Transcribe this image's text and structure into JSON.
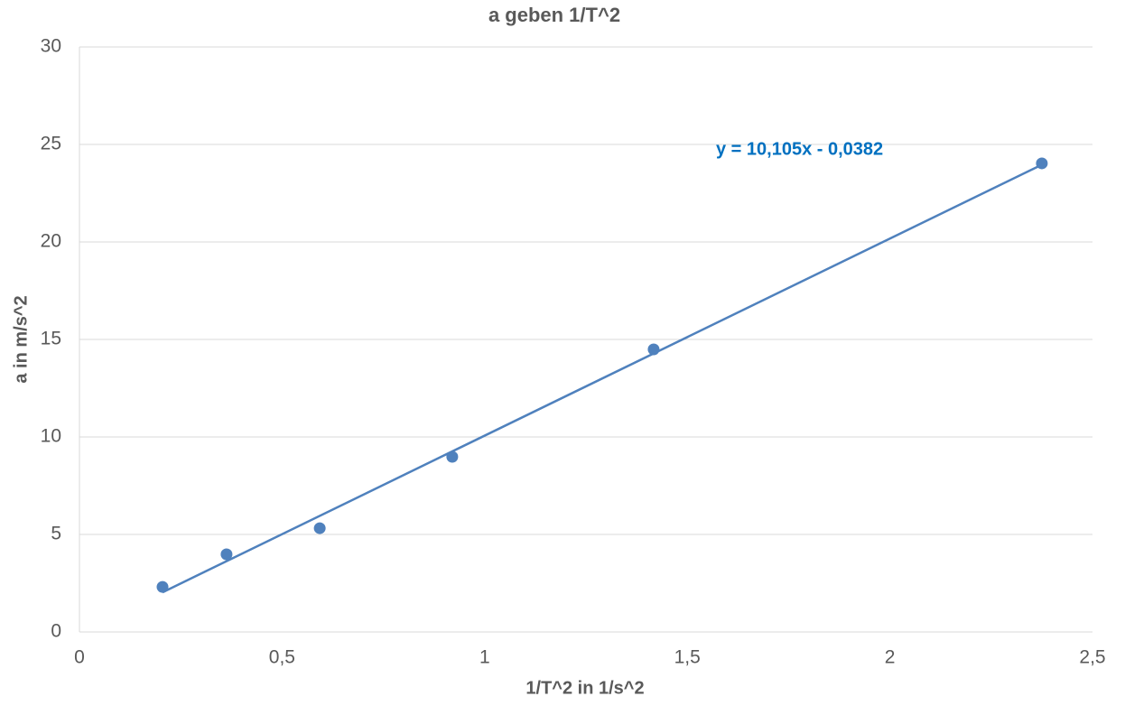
{
  "chart_data": {
    "type": "scatter",
    "title": "a geben 1/T^2",
    "x_label": "1/T^2  in 1/s^2",
    "y_label": "a in m/s^2",
    "series": [
      {
        "name": "a",
        "color": "#4f81bd",
        "x": [
          0.205,
          0.363,
          0.593,
          0.92,
          1.417,
          2.375
        ],
        "values": [
          2.31,
          3.98,
          5.32,
          8.98,
          14.49,
          24.03
        ]
      }
    ],
    "trendline": {
      "slope": 10.105,
      "intercept": -0.0382,
      "label": "y = 10,105x - 0,0382",
      "color": "#0070c0"
    },
    "xlim": [
      0,
      2.5
    ],
    "xticks": [
      0,
      {
        "value": 0.5,
        "label": "0,5"
      },
      1,
      {
        "value": 1.5,
        "label": "1,5"
      },
      2,
      {
        "value": 2.5,
        "label": "2,5"
      }
    ],
    "ylim": [
      0,
      30
    ],
    "yticks": [
      0,
      5,
      10,
      15,
      20,
      25,
      30
    ],
    "grid": true
  }
}
